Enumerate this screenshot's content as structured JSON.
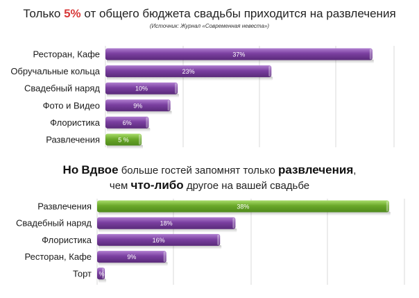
{
  "header": {
    "title_pre": "Только",
    "title_highlight": "5%",
    "title_post": "от общего бюджета свадьбы приходится на развлечения",
    "source": "(Источник: Журнал «Современная невеста»)"
  },
  "middle": {
    "p1": "Но",
    "p2": "Вдвое",
    "p3": "больше гостей запомнят только",
    "p4": "развлечения",
    "p5": ",",
    "p6": "чем",
    "p7": "что-либо",
    "p8": "другое на вашей свадьбе"
  },
  "colors": {
    "purple": "#7a3fa0",
    "purple_light": "#a36cc4",
    "green": "#6aa82a",
    "green_light": "#9bd45a",
    "grid": "#d9d9d9"
  },
  "chart_data": [
    {
      "type": "bar",
      "orientation": "horizontal",
      "title": "Только 5% от общего бюджета свадьбы приходится на развлечения",
      "categories": [
        "Ресторан, Кафе",
        "Обручальные кольца",
        "Свадебный наряд",
        "Фото и Видео",
        "Флористика",
        "Развлечения"
      ],
      "values": [
        37,
        23,
        10,
        9,
        6,
        5
      ],
      "labels": [
        "37%",
        "23%",
        "10%",
        "9%",
        "6%",
        "5 %"
      ],
      "highlight_index": 5,
      "xlim": [
        0,
        40
      ],
      "grid": true
    },
    {
      "type": "bar",
      "orientation": "horizontal",
      "categories": [
        "Развлечения",
        "Свадебный наряд",
        "Флористика",
        "Ресторан, Кафе",
        "Торт"
      ],
      "values": [
        38,
        18,
        16,
        9,
        1
      ],
      "labels": [
        "38%",
        "18%",
        "16%",
        "9%",
        "%"
      ],
      "highlight_index": 0,
      "xlim": [
        0,
        40
      ],
      "grid": true
    }
  ]
}
